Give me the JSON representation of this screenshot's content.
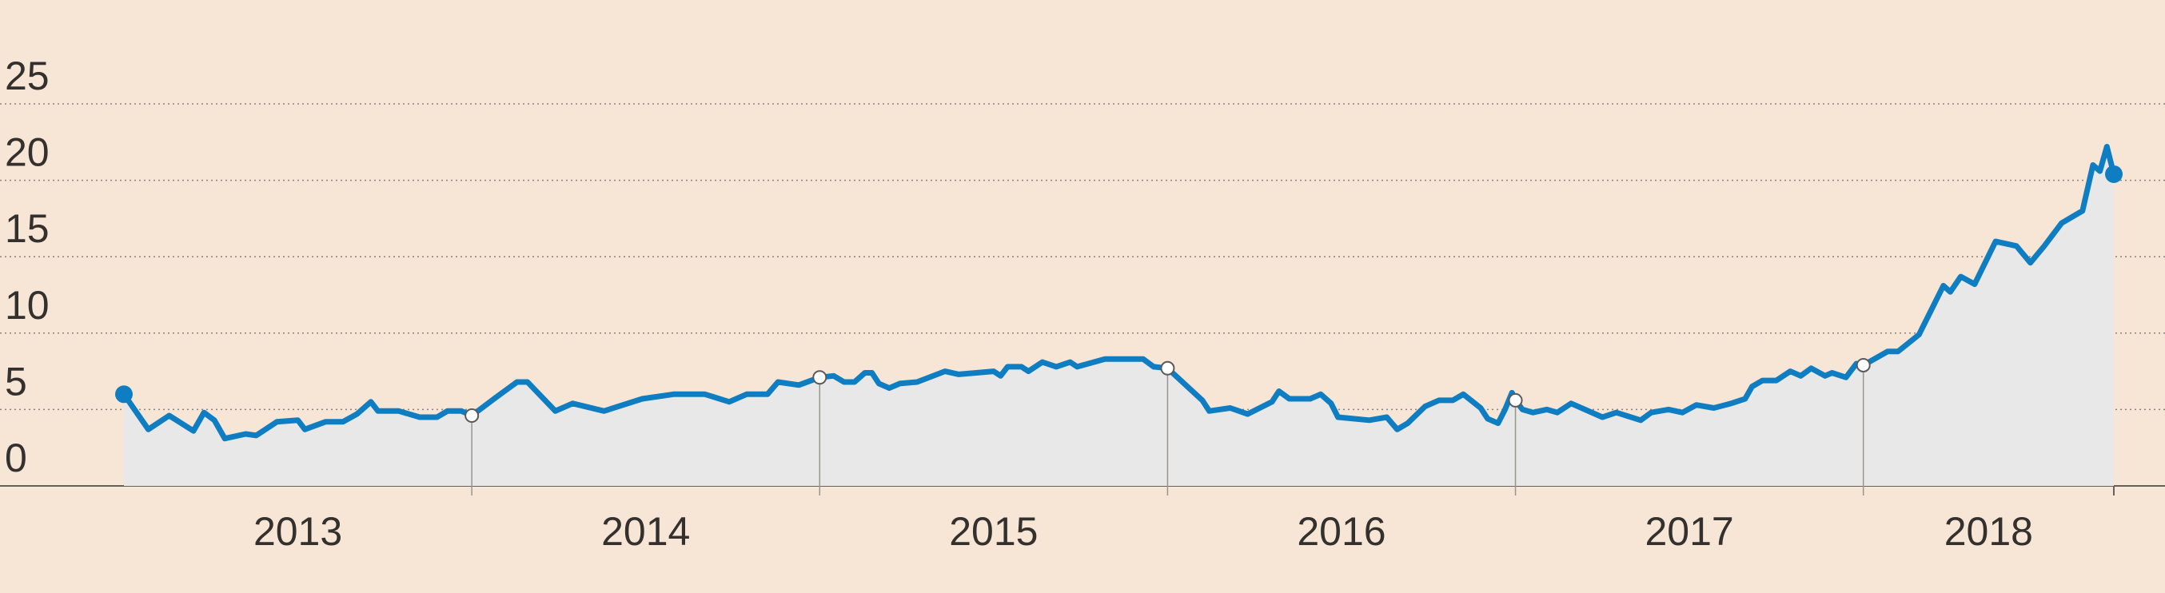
{
  "chart_data": {
    "type": "line",
    "x": [
      2013.0,
      2013.07,
      2013.13,
      2013.2,
      2013.23,
      2013.26,
      2013.29,
      2013.35,
      2013.38,
      2013.44,
      2013.5,
      2013.52,
      2013.58,
      2013.63,
      2013.67,
      2013.71,
      2013.73,
      2013.79,
      2013.85,
      2013.9,
      2013.93,
      2013.97,
      2014.0,
      2014.07,
      2014.13,
      2014.16,
      2014.24,
      2014.29,
      2014.38,
      2014.49,
      2014.58,
      2014.67,
      2014.74,
      2014.79,
      2014.85,
      2014.88,
      2014.94,
      2015.0,
      2015.04,
      2015.07,
      2015.1,
      2015.13,
      2015.15,
      2015.17,
      2015.2,
      2015.23,
      2015.28,
      2015.36,
      2015.4,
      2015.5,
      2015.52,
      2015.54,
      2015.58,
      2015.6,
      2015.64,
      2015.68,
      2015.72,
      2015.74,
      2015.82,
      2015.93,
      2015.96,
      2016.0,
      2016.1,
      2016.12,
      2016.18,
      2016.23,
      2016.3,
      2016.32,
      2016.35,
      2016.41,
      2016.44,
      2016.47,
      2016.49,
      2016.58,
      2016.63,
      2016.66,
      2016.69,
      2016.74,
      2016.78,
      2016.82,
      2016.85,
      2016.9,
      2016.92,
      2016.95,
      2016.97,
      2016.99,
      2017.0,
      2017.02,
      2017.05,
      2017.09,
      2017.12,
      2017.16,
      2017.25,
      2017.29,
      2017.36,
      2017.39,
      2017.44,
      2017.48,
      2017.52,
      2017.57,
      2017.62,
      2017.66,
      2017.68,
      2017.71,
      2017.75,
      2017.79,
      2017.82,
      2017.85,
      2017.89,
      2017.91,
      2017.95,
      2017.98,
      2018.0,
      2018.07,
      2018.1,
      2018.16,
      2018.23,
      2018.25,
      2018.28,
      2018.32,
      2018.38,
      2018.44,
      2018.48,
      2018.52,
      2018.57,
      2018.63,
      2018.66,
      2018.68,
      2018.7,
      2018.72
    ],
    "series": [
      {
        "color": "#0f7dc2",
        "values": [
          6.0,
          3.7,
          4.6,
          3.6,
          4.8,
          4.3,
          3.1,
          3.4,
          3.3,
          4.2,
          4.3,
          3.7,
          4.2,
          4.2,
          4.7,
          5.5,
          4.9,
          4.9,
          4.5,
          4.5,
          4.9,
          4.9,
          4.6,
          5.8,
          6.8,
          6.8,
          4.9,
          5.4,
          4.9,
          5.7,
          6.0,
          6.0,
          5.5,
          6.0,
          6.0,
          6.8,
          6.6,
          7.1,
          7.2,
          6.8,
          6.8,
          7.4,
          7.4,
          6.7,
          6.4,
          6.7,
          6.8,
          7.5,
          7.3,
          7.5,
          7.2,
          7.8,
          7.8,
          7.5,
          8.1,
          7.8,
          8.1,
          7.8,
          8.3,
          8.3,
          7.8,
          7.7,
          5.6,
          4.9,
          5.1,
          4.7,
          5.5,
          6.2,
          5.7,
          5.7,
          6.0,
          5.4,
          4.5,
          4.3,
          4.5,
          3.7,
          4.1,
          5.2,
          5.6,
          5.6,
          6.0,
          5.1,
          4.4,
          4.1,
          5.0,
          6.1,
          5.6,
          5.0,
          4.8,
          5.0,
          4.8,
          5.4,
          4.5,
          4.8,
          4.3,
          4.8,
          5.0,
          4.8,
          5.3,
          5.1,
          5.4,
          5.7,
          6.5,
          6.9,
          6.9,
          7.5,
          7.2,
          7.7,
          7.2,
          7.4,
          7.1,
          8.0,
          7.9,
          8.8,
          8.8,
          9.9,
          13.1,
          12.7,
          13.7,
          13.2,
          16.0,
          15.7,
          14.6,
          15.7,
          17.2,
          18.0,
          21.0,
          20.6,
          22.2,
          20.4
        ]
      }
    ],
    "xlim": [
      2013,
      2018.72
    ],
    "xticks": [
      {
        "value": 2013.5,
        "label": "2013"
      },
      {
        "value": 2014.5,
        "label": "2014"
      },
      {
        "value": 2015.5,
        "label": "2015"
      },
      {
        "value": 2016.5,
        "label": "2016"
      },
      {
        "value": 2017.5,
        "label": "2017"
      },
      {
        "value": 2018.36,
        "label": "2018"
      }
    ],
    "ylim": [
      0,
      25
    ],
    "yticks": [
      0,
      5,
      10,
      15,
      20,
      25
    ],
    "grid": true,
    "area_color": "#e8e8e8"
  }
}
